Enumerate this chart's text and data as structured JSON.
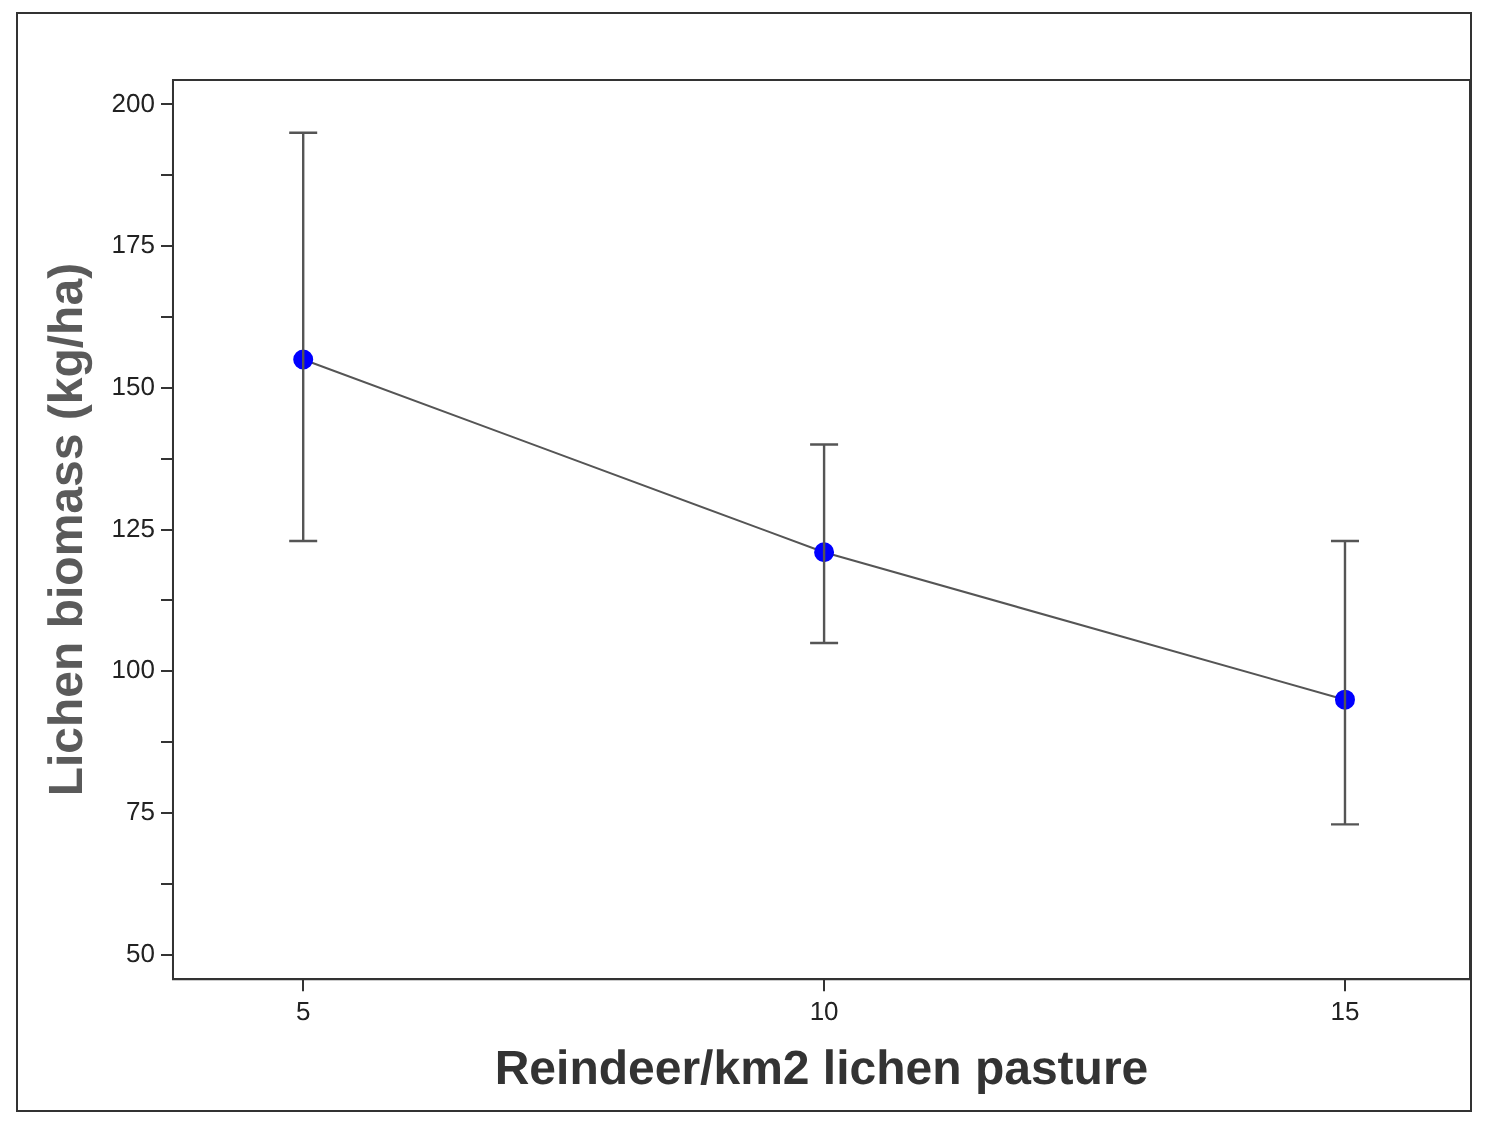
{
  "chart_data": {
    "type": "line",
    "xlabel": "Reindeer/km2 lichen pasture",
    "ylabel": "Lichen biomass (kg/ha)",
    "x": [
      5,
      10,
      15
    ],
    "series": [
      {
        "color": "#0000ff",
        "values": [
          155,
          121,
          95
        ],
        "errors": [
          [
            123,
            195
          ],
          [
            105,
            140
          ],
          [
            73,
            123
          ]
        ]
      }
    ],
    "xlim": [
      3.75,
      16.2
    ],
    "xticks": [
      5,
      10,
      15
    ],
    "ylim": [
      45.7,
      204.3
    ],
    "yticks": [
      50,
      {
        "value": 62.5,
        "label": null
      },
      75,
      {
        "value": 87.5,
        "label": null
      },
      100,
      {
        "value": 112.5,
        "label": null
      },
      125,
      {
        "value": 137.5,
        "label": null
      },
      150,
      {
        "value": 162.5,
        "label": null
      },
      175,
      {
        "value": 187.5,
        "label": null
      },
      200
    ],
    "grid": false,
    "legend": false,
    "marker": "circle",
    "line_style": "solid"
  }
}
